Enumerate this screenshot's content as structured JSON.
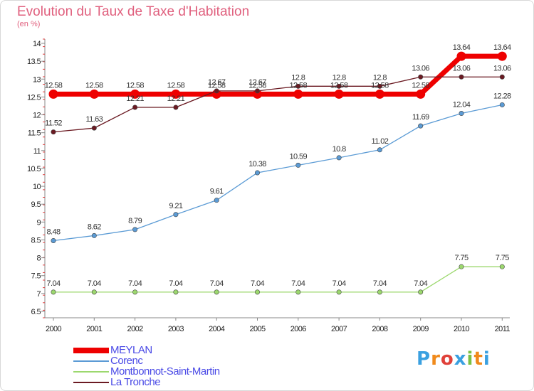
{
  "title": "Evolution du Taux de Taxe d'Habitation",
  "subtitle": "(en %)",
  "logo": {
    "text": "Proxiti",
    "colors": [
      "#3aa0e0",
      "#f08a1c",
      "#e0413a",
      "#3aa0e0",
      "#7ac143",
      "#f08a1c",
      "#3aa0e0"
    ]
  },
  "chart_data": {
    "type": "line",
    "x": [
      "2000",
      "2001",
      "2002",
      "2003",
      "2004",
      "2005",
      "2006",
      "2007",
      "2008",
      "2009",
      "2010",
      "2011"
    ],
    "ylim": [
      6.5,
      14
    ],
    "yticks": [
      "6.5",
      "7",
      "7.5",
      "8",
      "8.5",
      "9",
      "9.5",
      "10",
      "10.5",
      "11",
      "11.5",
      "12",
      "12.5",
      "13",
      "13.5",
      "14"
    ],
    "grid": false,
    "legend_position": "bottom-left",
    "series": [
      {
        "name": "MEYLAN",
        "color": "#ee0000",
        "thick": true,
        "values": [
          12.58,
          12.58,
          12.58,
          12.58,
          12.58,
          12.58,
          12.58,
          12.58,
          12.58,
          12.58,
          13.64,
          13.64
        ],
        "labels": [
          "12.58",
          "12.58",
          "12.58",
          "12.58",
          "12.58",
          "12.58",
          "12.58",
          "12.58",
          "12.58",
          "12.58",
          "13.64",
          "13.64"
        ]
      },
      {
        "name": "Corenc",
        "color": "#5b9bd5",
        "thick": false,
        "values": [
          8.48,
          8.62,
          8.79,
          9.21,
          9.61,
          10.38,
          10.59,
          10.8,
          11.02,
          11.69,
          12.04,
          12.28
        ],
        "labels": [
          "8.48",
          "8.62",
          "8.79",
          "9.21",
          "9.61",
          "10.38",
          "10.59",
          "10.8",
          "11.02",
          "11.69",
          "12.04",
          "12.28"
        ]
      },
      {
        "name": "Montbonnot-Saint-Martin",
        "color": "#9cd86e",
        "thick": false,
        "values": [
          7.04,
          7.04,
          7.04,
          7.04,
          7.04,
          7.04,
          7.04,
          7.04,
          7.04,
          7.04,
          7.75,
          7.75
        ],
        "labels": [
          "7.04",
          "7.04",
          "7.04",
          "7.04",
          "7.04",
          "7.04",
          "7.04",
          "7.04",
          "7.04",
          "7.04",
          "7.75",
          "7.75"
        ]
      },
      {
        "name": "La Tronche",
        "color": "#6b1a22",
        "thick": false,
        "values": [
          11.52,
          11.63,
          12.21,
          12.21,
          12.67,
          12.67,
          12.8,
          12.8,
          12.8,
          13.06,
          13.06,
          13.06
        ],
        "labels": [
          "11.52",
          "11.63",
          "12.21",
          "12.21",
          "12.67",
          "12.67",
          "12.8",
          "12.8",
          "12.8",
          "13.06",
          "13.06",
          "13.06"
        ]
      }
    ]
  }
}
